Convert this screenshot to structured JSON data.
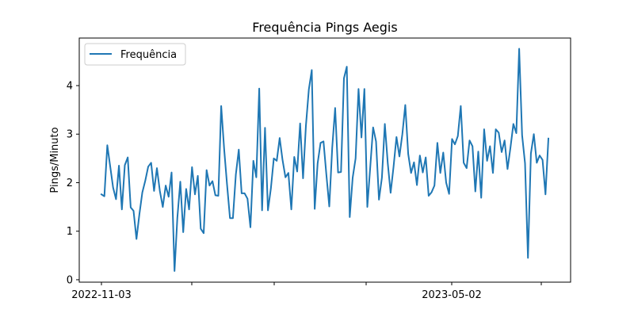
{
  "chart_data": {
    "type": "line",
    "title": "Frequência Pings Aegis",
    "xlabel": "",
    "ylabel": "Pings/Minuto",
    "ylim": [
      -0.05,
      4.98
    ],
    "yticks": [
      0,
      1,
      2,
      3,
      4
    ],
    "x_labeled_ticks": [
      "2022-11-03",
      "2023-05-02"
    ],
    "legend": {
      "position": "top-left",
      "entries": [
        "Frequência"
      ]
    },
    "grid": false,
    "colors": {
      "series": "#1f77b4",
      "axes": "#000000",
      "background": "#ffffff"
    },
    "series": [
      {
        "name": "Frequência",
        "values": [
          1.76,
          1.72,
          2.77,
          2.33,
          1.9,
          1.66,
          2.35,
          1.45,
          2.36,
          2.52,
          1.49,
          1.42,
          0.84,
          1.35,
          1.8,
          2.04,
          2.33,
          2.41,
          1.83,
          2.3,
          1.83,
          1.5,
          1.94,
          1.71,
          2.21,
          0.18,
          1.28,
          2.02,
          0.98,
          1.87,
          1.45,
          2.32,
          1.76,
          2.14,
          1.05,
          0.96,
          2.26,
          1.94,
          2.03,
          1.74,
          1.73,
          3.58,
          2.7,
          1.96,
          1.27,
          1.27,
          2.17,
          2.68,
          1.78,
          1.78,
          1.67,
          1.08,
          2.45,
          2.11,
          3.94,
          1.43,
          3.13,
          1.43,
          1.88,
          2.5,
          2.45,
          2.92,
          2.47,
          2.11,
          2.2,
          1.45,
          2.53,
          2.23,
          3.22,
          2.09,
          3.17,
          3.92,
          4.32,
          1.46,
          2.4,
          2.82,
          2.85,
          2.17,
          1.51,
          2.72,
          3.54,
          2.21,
          2.22,
          4.15,
          4.39,
          1.29,
          2.1,
          2.5,
          3.93,
          2.93,
          3.93,
          1.5,
          2.3,
          3.14,
          2.85,
          1.65,
          2.1,
          3.21,
          2.4,
          1.79,
          2.33,
          2.94,
          2.54,
          3.0,
          3.6,
          2.59,
          2.2,
          2.42,
          1.95,
          2.56,
          2.21,
          2.52,
          1.73,
          1.8,
          1.94,
          2.82,
          2.2,
          2.62,
          2.0,
          1.77,
          2.9,
          2.79,
          2.96,
          3.58,
          2.41,
          2.3,
          2.87,
          2.75,
          1.82,
          2.64,
          1.69,
          3.1,
          2.45,
          2.75,
          2.2,
          3.1,
          3.03,
          2.63,
          2.87,
          2.28,
          2.72,
          3.21,
          3.02,
          4.76,
          2.98,
          2.4,
          0.45,
          2.6,
          3.0,
          2.41,
          2.56,
          2.47,
          1.76,
          2.91
        ]
      }
    ]
  }
}
